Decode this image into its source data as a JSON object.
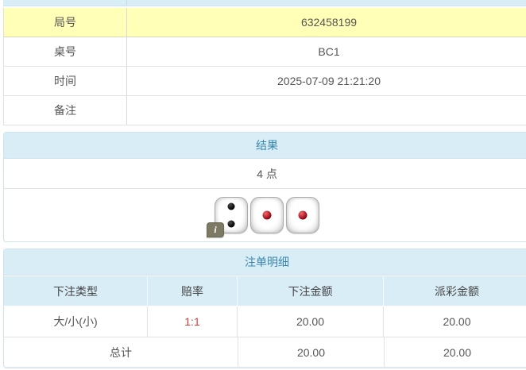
{
  "colors": {
    "highlight_yellow": "#ffffb8",
    "header_blue_bg": "#d9edf7",
    "header_blue_text": "#3a87ad",
    "odds_red": "#d43c3c"
  },
  "info_table": {
    "rows": [
      {
        "label": "局号",
        "value": "632458199"
      },
      {
        "label": "桌号",
        "value": "BC1"
      },
      {
        "label": "时间",
        "value": "2025-07-09 21:21:20"
      },
      {
        "label": "备注",
        "value": ""
      }
    ]
  },
  "result_panel": {
    "title": "结果",
    "points": "4 点",
    "dice": [
      {
        "value": 2,
        "pip_color": "black"
      },
      {
        "value": 1,
        "pip_color": "red"
      },
      {
        "value": 1,
        "pip_color": "red"
      }
    ],
    "info_badge": "i"
  },
  "bet_panel": {
    "title": "注单明细",
    "columns": [
      "下注类型",
      "赔率",
      "下注金额",
      "派彩金额"
    ],
    "rows": [
      {
        "bet_type": "大/小(小)",
        "odds": "1:1",
        "bet_amount": "20.00",
        "payout_amount": "20.00"
      }
    ],
    "total_row": {
      "label": "总计",
      "bet_amount": "20.00",
      "payout_amount": "20.00"
    }
  }
}
